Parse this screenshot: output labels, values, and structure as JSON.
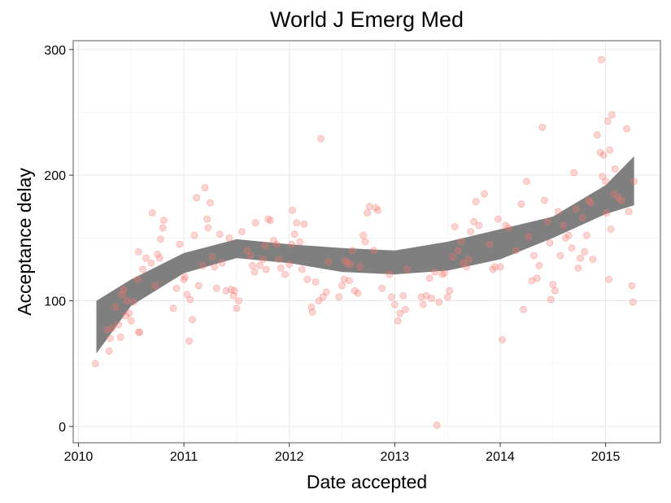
{
  "chart_data": {
    "type": "scatter",
    "title": "World J Emerg Med",
    "xlabel": "Date accepted",
    "ylabel": "Acceptance delay",
    "xlim": [
      2009.95,
      2015.52
    ],
    "ylim": [
      -13,
      307
    ],
    "x_ticks": [
      2010,
      2011,
      2012,
      2013,
      2014,
      2015
    ],
    "x_tick_labels": [
      "2010",
      "2011",
      "2012",
      "2013",
      "2014",
      "2015"
    ],
    "y_ticks": [
      0,
      100,
      200,
      300
    ],
    "y_tick_labels": [
      "0",
      "100",
      "200",
      "300"
    ],
    "grid": true,
    "legend": "none",
    "point_color": "#f8766d",
    "band_color": "#7f7f7f",
    "smooth_band": {
      "x": [
        2010.17,
        2010.5,
        2011.0,
        2011.5,
        2012.0,
        2012.5,
        2013.0,
        2013.5,
        2014.0,
        2014.5,
        2015.0,
        2015.27
      ],
      "lower": [
        58,
        96,
        122,
        134,
        130,
        123,
        121,
        124,
        133,
        150,
        169,
        176
      ],
      "upper": [
        100,
        117,
        138,
        149,
        145,
        142,
        140,
        147,
        157,
        167,
        192,
        215
      ]
    },
    "points": [
      [
        2010.16,
        50
      ],
      [
        2010.27,
        77
      ],
      [
        2010.29,
        60
      ],
      [
        2010.32,
        78
      ],
      [
        2010.3,
        70
      ],
      [
        2010.35,
        95
      ],
      [
        2010.38,
        81
      ],
      [
        2010.4,
        71
      ],
      [
        2010.41,
        105
      ],
      [
        2010.43,
        109
      ],
      [
        2010.45,
        88
      ],
      [
        2010.46,
        100
      ],
      [
        2010.48,
        90
      ],
      [
        2010.5,
        84
      ],
      [
        2010.52,
        99
      ],
      [
        2010.56,
        117
      ],
      [
        2010.57,
        139
      ],
      [
        2010.57,
        75
      ],
      [
        2010.58,
        75
      ],
      [
        2010.61,
        125
      ],
      [
        2010.64,
        134
      ],
      [
        2010.69,
        130
      ],
      [
        2010.7,
        170
      ],
      [
        2010.73,
        112
      ],
      [
        2010.75,
        137
      ],
      [
        2010.77,
        134
      ],
      [
        2010.78,
        149
      ],
      [
        2010.8,
        158
      ],
      [
        2010.81,
        164
      ],
      [
        2010.9,
        94
      ],
      [
        2010.93,
        110
      ],
      [
        2010.96,
        145
      ],
      [
        2011.0,
        117
      ],
      [
        2011.01,
        119
      ],
      [
        2011.03,
        105
      ],
      [
        2011.05,
        68
      ],
      [
        2011.06,
        101
      ],
      [
        2011.08,
        85
      ],
      [
        2011.1,
        152
      ],
      [
        2011.12,
        182
      ],
      [
        2011.14,
        112
      ],
      [
        2011.18,
        128
      ],
      [
        2011.2,
        190
      ],
      [
        2011.22,
        165
      ],
      [
        2011.23,
        158
      ],
      [
        2011.25,
        178
      ],
      [
        2011.27,
        135
      ],
      [
        2011.29,
        127
      ],
      [
        2011.31,
        110
      ],
      [
        2011.34,
        153
      ],
      [
        2011.36,
        130
      ],
      [
        2011.4,
        108
      ],
      [
        2011.43,
        150
      ],
      [
        2011.45,
        109
      ],
      [
        2011.47,
        104
      ],
      [
        2011.48,
        108
      ],
      [
        2011.5,
        94
      ],
      [
        2011.52,
        100
      ],
      [
        2011.55,
        155
      ],
      [
        2011.6,
        140
      ],
      [
        2011.63,
        136
      ],
      [
        2011.65,
        128
      ],
      [
        2011.67,
        123
      ],
      [
        2011.68,
        162
      ],
      [
        2011.72,
        128
      ],
      [
        2011.75,
        133
      ],
      [
        2011.77,
        144
      ],
      [
        2011.78,
        125
      ],
      [
        2011.8,
        165
      ],
      [
        2011.82,
        164
      ],
      [
        2011.85,
        148
      ],
      [
        2011.88,
        145
      ],
      [
        2011.9,
        133
      ],
      [
        2011.92,
        126
      ],
      [
        2011.96,
        121
      ],
      [
        2012.0,
        129
      ],
      [
        2012.02,
        145
      ],
      [
        2012.03,
        172
      ],
      [
        2012.05,
        153
      ],
      [
        2012.07,
        162
      ],
      [
        2012.1,
        147
      ],
      [
        2012.12,
        125
      ],
      [
        2012.14,
        161
      ],
      [
        2012.17,
        117
      ],
      [
        2012.21,
        95
      ],
      [
        2012.22,
        91
      ],
      [
        2012.25,
        115
      ],
      [
        2012.28,
        100
      ],
      [
        2012.3,
        229
      ],
      [
        2012.32,
        103
      ],
      [
        2012.35,
        107
      ],
      [
        2012.37,
        131
      ],
      [
        2012.47,
        103
      ],
      [
        2012.5,
        112
      ],
      [
        2012.52,
        117
      ],
      [
        2012.53,
        132
      ],
      [
        2012.55,
        130
      ],
      [
        2012.57,
        116
      ],
      [
        2012.58,
        129
      ],
      [
        2012.6,
        140
      ],
      [
        2012.62,
        108
      ],
      [
        2012.65,
        106
      ],
      [
        2012.67,
        127
      ],
      [
        2012.7,
        152
      ],
      [
        2012.72,
        147
      ],
      [
        2012.74,
        170
      ],
      [
        2012.76,
        175
      ],
      [
        2012.8,
        140
      ],
      [
        2012.82,
        174
      ],
      [
        2012.84,
        172
      ],
      [
        2012.88,
        110
      ],
      [
        2012.95,
        121
      ],
      [
        2012.97,
        103
      ],
      [
        2013.0,
        97
      ],
      [
        2013.03,
        84
      ],
      [
        2013.05,
        90
      ],
      [
        2013.08,
        104
      ],
      [
        2013.1,
        93
      ],
      [
        2013.12,
        125
      ],
      [
        2013.25,
        103
      ],
      [
        2013.27,
        97
      ],
      [
        2013.3,
        104
      ],
      [
        2013.33,
        118
      ],
      [
        2013.35,
        102
      ],
      [
        2013.38,
        123
      ],
      [
        2013.4,
        1
      ],
      [
        2013.42,
        99
      ],
      [
        2013.45,
        121
      ],
      [
        2013.47,
        122
      ],
      [
        2013.5,
        103
      ],
      [
        2013.52,
        108
      ],
      [
        2013.55,
        135
      ],
      [
        2013.57,
        159
      ],
      [
        2013.6,
        140
      ],
      [
        2013.63,
        147
      ],
      [
        2013.65,
        130
      ],
      [
        2013.68,
        127
      ],
      [
        2013.7,
        133
      ],
      [
        2013.72,
        155
      ],
      [
        2013.75,
        163
      ],
      [
        2013.77,
        179
      ],
      [
        2013.8,
        160
      ],
      [
        2013.85,
        185
      ],
      [
        2013.9,
        145
      ],
      [
        2013.93,
        125
      ],
      [
        2013.95,
        127
      ],
      [
        2013.98,
        165
      ],
      [
        2014.0,
        127
      ],
      [
        2014.02,
        69
      ],
      [
        2014.05,
        160
      ],
      [
        2014.08,
        158
      ],
      [
        2014.15,
        140
      ],
      [
        2014.2,
        177
      ],
      [
        2014.22,
        93
      ],
      [
        2014.25,
        195
      ],
      [
        2014.27,
        151
      ],
      [
        2014.3,
        116
      ],
      [
        2014.32,
        136
      ],
      [
        2014.35,
        118
      ],
      [
        2014.37,
        128
      ],
      [
        2014.4,
        238
      ],
      [
        2014.42,
        180
      ],
      [
        2014.45,
        163
      ],
      [
        2014.47,
        146
      ],
      [
        2014.48,
        101
      ],
      [
        2014.5,
        113
      ],
      [
        2014.52,
        108
      ],
      [
        2014.55,
        171
      ],
      [
        2014.57,
        136
      ],
      [
        2014.6,
        160
      ],
      [
        2014.62,
        150
      ],
      [
        2014.65,
        152
      ],
      [
        2014.68,
        142
      ],
      [
        2014.7,
        202
      ],
      [
        2014.72,
        173
      ],
      [
        2014.74,
        126
      ],
      [
        2014.76,
        134
      ],
      [
        2014.78,
        166
      ],
      [
        2014.8,
        139
      ],
      [
        2014.82,
        152
      ],
      [
        2014.84,
        180
      ],
      [
        2014.86,
        178
      ],
      [
        2014.88,
        133
      ],
      [
        2014.92,
        232
      ],
      [
        2014.95,
        218
      ],
      [
        2014.96,
        292
      ],
      [
        2014.97,
        199
      ],
      [
        2014.98,
        216
      ],
      [
        2015.0,
        195
      ],
      [
        2015.01,
        170
      ],
      [
        2015.02,
        243
      ],
      [
        2015.03,
        117
      ],
      [
        2015.04,
        220
      ],
      [
        2015.05,
        157
      ],
      [
        2015.06,
        248
      ],
      [
        2015.08,
        185
      ],
      [
        2015.09,
        205
      ],
      [
        2015.12,
        182
      ],
      [
        2015.15,
        180
      ],
      [
        2015.2,
        237
      ],
      [
        2015.22,
        171
      ],
      [
        2015.25,
        112
      ],
      [
        2015.26,
        99
      ],
      [
        2015.27,
        195
      ]
    ]
  }
}
